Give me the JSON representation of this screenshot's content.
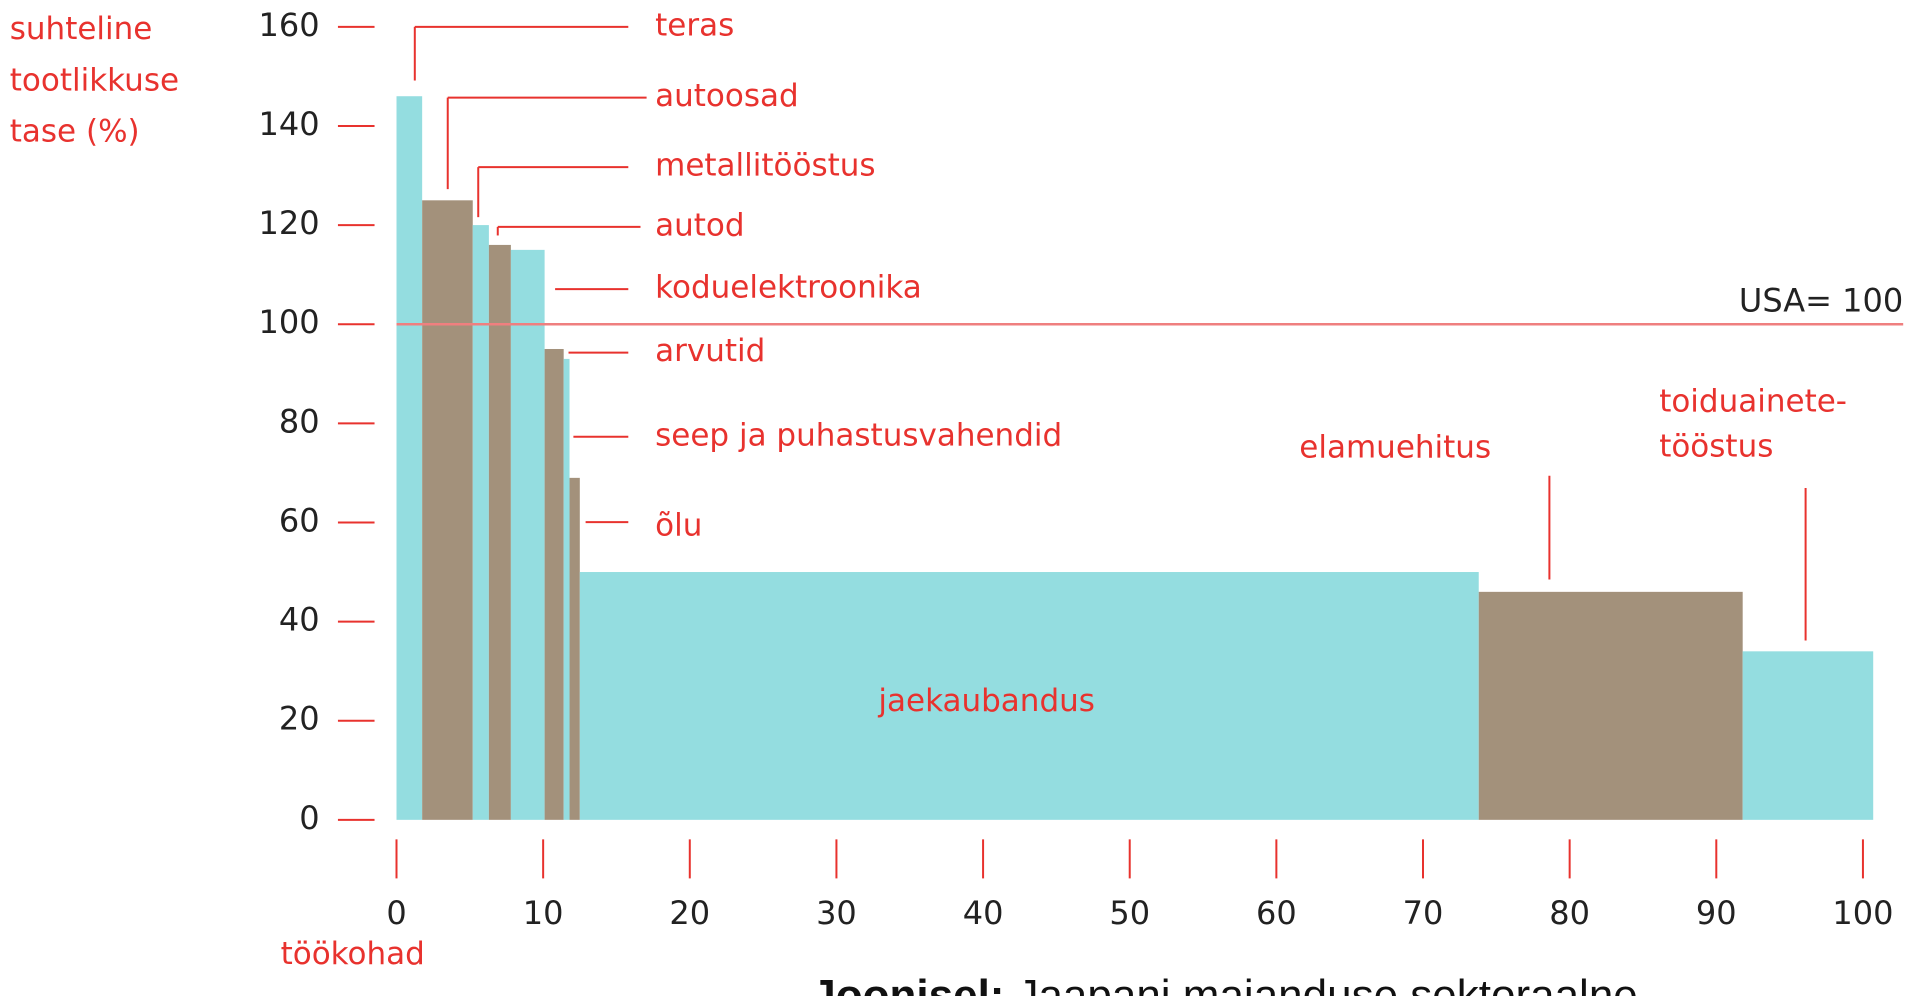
{
  "chart_data": {
    "type": "variable-width-bar",
    "y_axis_label": "suhteline\ntootlikkuse\ntase (%)",
    "x_axis_label": "töökohad",
    "caption_bold": "Joonisel:",
    "caption": "Jaapani majanduse sektoraalne",
    "categories": [
      "teras",
      "autoosad",
      "metallitööstus",
      "autod",
      "koduelektroonika",
      "arvutid",
      "seep ja puhastusvahendid",
      "õlu",
      "jaekaubandus",
      "elamuehitus",
      "toiduainete-\ntööstus"
    ],
    "x_start": [
      0,
      1.75,
      5.2,
      6.3,
      7.8,
      10.1,
      11.4,
      11.8,
      12.5,
      73.8,
      91.8
    ],
    "x_end": [
      1.75,
      5.2,
      6.3,
      7.8,
      10.1,
      11.4,
      11.8,
      12.5,
      73.8,
      91.8,
      100.7
    ],
    "values": [
      146,
      125,
      120,
      116,
      115,
      95,
      93,
      69,
      50,
      46,
      34
    ],
    "colors": [
      "#94dde0",
      "#a3917b",
      "#94dde0",
      "#a3917b",
      "#94dde0",
      "#a3917b",
      "#94dde0",
      "#a3917b",
      "#94dde0",
      "#a3917b",
      "#94dde0"
    ],
    "reference_line": {
      "value": 100,
      "label": "USA= 100",
      "color": "#ef7f7f"
    },
    "xlim": [
      0,
      100
    ],
    "xticks": [
      0,
      10,
      20,
      30,
      40,
      50,
      60,
      70,
      80,
      90,
      100
    ],
    "ylim": [
      0,
      160
    ],
    "yticks": [
      0,
      20,
      40,
      60,
      80,
      100,
      120,
      140,
      160
    ]
  }
}
